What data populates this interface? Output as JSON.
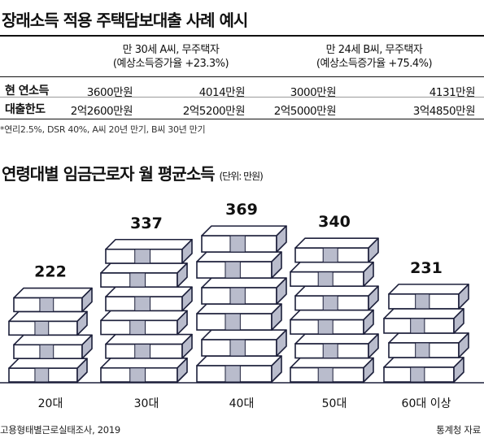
{
  "table": {
    "title": "장래소득 적용 주택담보대출 사례 예시",
    "col_a": {
      "line1": "만 30세 A씨, 무주택자",
      "line2": "(예상소득증가율 +23.3%)"
    },
    "col_b": {
      "line1": "만 24세 B씨, 무주택자",
      "line2": "(예상소득증가율 +75.4%)"
    },
    "rows": [
      {
        "label": "현 연소득",
        "a1": "3600만원",
        "a2": "4014만원",
        "b1": "3000만원",
        "b2": "4131만원"
      },
      {
        "label": "대출한도",
        "a1": "2억2600만원",
        "a2": "2억5200만원",
        "b1": "2억5000만원",
        "b2": "3억4850만원"
      }
    ],
    "footnote": "*연리2.5%, DSR 40%, A씨 20년 만기, B씨 30년 만기"
  },
  "chart_title": "연령대별 임금근로자 월 평균소득",
  "chart_unit": "(단위: 만원)",
  "chart_data": {
    "type": "bar",
    "title": "연령대별 임금근로자 월 평균소득",
    "unit": "만원",
    "categories": [
      "20대",
      "30대",
      "40대",
      "50대",
      "60대 이상"
    ],
    "values": [
      222,
      337,
      369,
      340,
      231
    ],
    "xlabel": "",
    "ylabel": "",
    "grid": false,
    "legend": "none",
    "style": "stacked-banknote-bundles"
  },
  "colors": {
    "ink": "#1c1f3a",
    "bundle_face": "#ffffff",
    "bundle_band": "#b9bccc"
  },
  "source_left": "고용형태별근로실태조사, 2019",
  "source_right": "통계청 자료"
}
